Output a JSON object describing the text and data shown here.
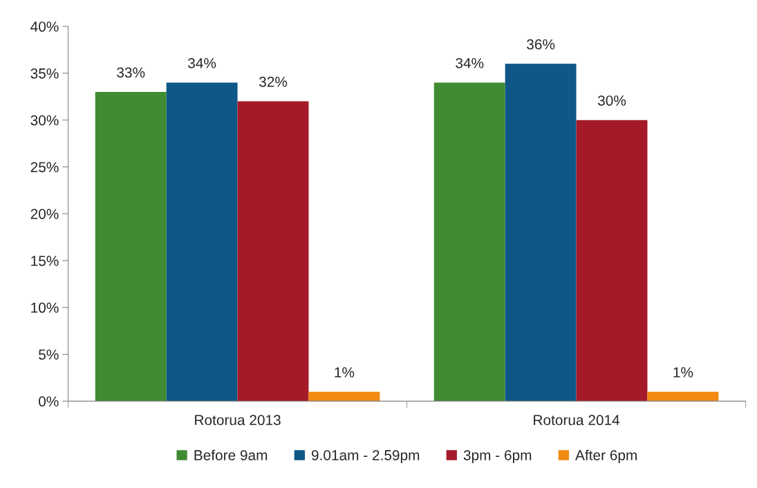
{
  "chart_data": {
    "type": "bar",
    "categories": [
      "Rotorua 2013",
      "Rotorua 2014"
    ],
    "series": [
      {
        "name": "Before 9am",
        "color": "#418b32",
        "values": [
          33,
          34
        ],
        "value_labels": [
          "33%",
          "34%"
        ]
      },
      {
        "name": "9.01am - 2.59pm",
        "color": "#0e5787",
        "values": [
          34,
          36
        ],
        "value_labels": [
          "34%",
          "36%"
        ]
      },
      {
        "name": "3pm - 6pm",
        "color": "#a51a29",
        "values": [
          32,
          30
        ],
        "value_labels": [
          "32%",
          "30%"
        ]
      },
      {
        "name": "After 6pm",
        "color": "#f28a12",
        "values": [
          1,
          1
        ],
        "value_labels": [
          "1%",
          "1%"
        ]
      }
    ],
    "ylim": [
      0,
      40
    ],
    "yticks": [
      {
        "value": 0,
        "label": "0%"
      },
      {
        "value": 5,
        "label": "5%"
      },
      {
        "value": 10,
        "label": "10%"
      },
      {
        "value": 15,
        "label": "15%"
      },
      {
        "value": 20,
        "label": "20%"
      },
      {
        "value": 25,
        "label": "25%"
      },
      {
        "value": 30,
        "label": "30%"
      },
      {
        "value": 35,
        "label": "35%"
      },
      {
        "value": 40,
        "label": "40%"
      }
    ],
    "grid": false,
    "legend": "bottom"
  }
}
